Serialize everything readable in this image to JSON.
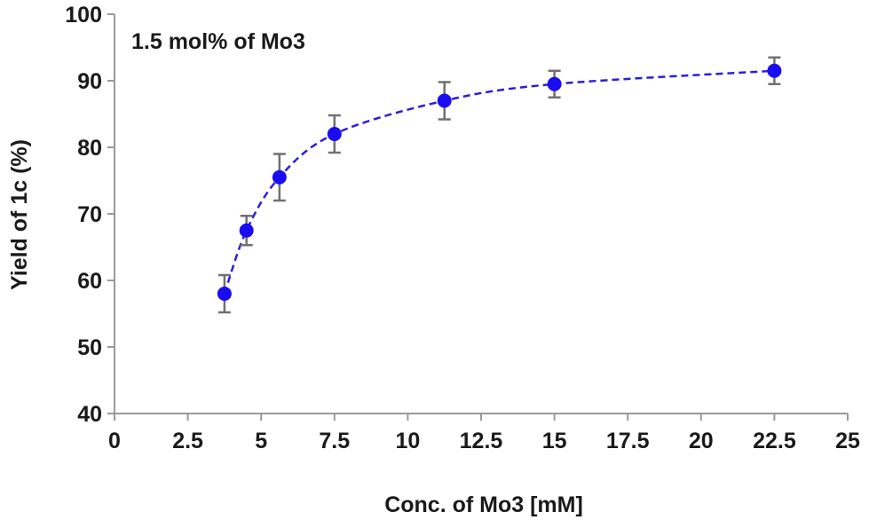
{
  "chart_data": {
    "type": "scatter",
    "xlabel": "Conc. of Mo3 [mM]",
    "ylabel": "Yield of 1c (%)",
    "annotation": "1.5 mol% of Mo3",
    "xlim": [
      0,
      25
    ],
    "ylim": [
      40,
      100
    ],
    "x_ticks": [
      0,
      2.5,
      5,
      7.5,
      10,
      12.5,
      15,
      17.5,
      20,
      22.5,
      25
    ],
    "x_tick_labels": [
      "0",
      "2.5",
      "5",
      "7.5",
      "10",
      "12.5",
      "15",
      "17.5",
      "20",
      "22.5",
      "25"
    ],
    "y_ticks": [
      40,
      50,
      60,
      70,
      80,
      90,
      100
    ],
    "y_tick_labels": [
      "40",
      "50",
      "60",
      "70",
      "80",
      "90",
      "100"
    ],
    "grid": false,
    "legend": "none",
    "fit_line": "dashed",
    "series": [
      {
        "x": [
          3.75,
          4.5,
          5.625,
          7.5,
          11.25,
          15,
          22.5
        ],
        "y": [
          58,
          67.5,
          75.5,
          82,
          87,
          89.5,
          91.5
        ],
        "error": [
          2.8,
          2.2,
          3.5,
          2.8,
          2.8,
          2.0,
          2.0
        ]
      }
    ],
    "colors": {
      "marker": "#1a0cf0",
      "fit_line": "#2a1ee0",
      "error_bar": "#707070",
      "axis": "#999999"
    }
  }
}
